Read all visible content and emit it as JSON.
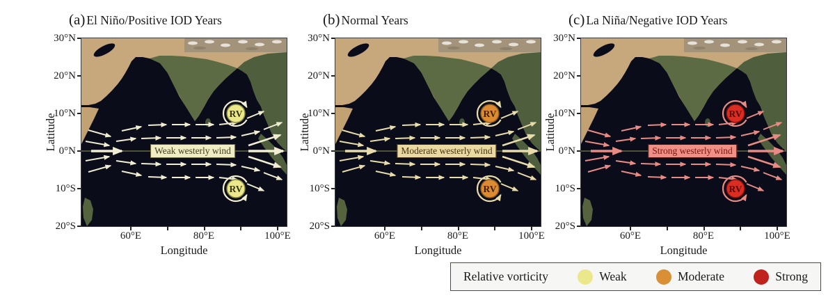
{
  "figure": {
    "panels": [
      {
        "label": "(a)",
        "title": "El Niño/Positive IOD Years",
        "wind_label": "Weak westerly wind",
        "vorticity_label": "RV",
        "intensity": "Weak",
        "colors": {
          "arrow": "#f1edd2",
          "box_bg": "#f1ecc3",
          "box_text": "#3d3d20",
          "box_border": "#6b6b3a",
          "rv_fill": "#ebe88c",
          "rv_ring": "#88883c",
          "rv_text": "#33330f"
        }
      },
      {
        "label": "(b)",
        "title": "Normal Years",
        "wind_label": "Moderate westerly wind",
        "vorticity_label": "RV",
        "intensity": "Moderate",
        "colors": {
          "arrow": "#e9dcab",
          "box_bg": "#ead9a0",
          "box_text": "#47320f",
          "box_border": "#47320f",
          "rv_fill": "#dd8b33",
          "rv_ring": "#8a5a1a",
          "rv_text": "#3a1f05"
        }
      },
      {
        "label": "(c)",
        "title": "La Niña/Negative IOD Years",
        "wind_label": "Strong westerly wind",
        "vorticity_label": "RV",
        "intensity": "Strong",
        "colors": {
          "arrow": "#e88b84",
          "box_bg": "#ef8f85",
          "box_text": "#7c120e",
          "box_border": "#5a0e0a",
          "rv_fill": "#da2d23",
          "rv_ring": "#7c100c",
          "rv_text": "#500a08"
        }
      }
    ],
    "axes": {
      "x_label": "Longitude",
      "y_label": "Latitude",
      "x_ticks": [
        "60°E",
        "80°E",
        "100°E"
      ],
      "y_ticks": [
        "30°N",
        "20°N",
        "10°N",
        "0°N",
        "10°S",
        "20°S"
      ]
    },
    "legend": {
      "title": "Relative vorticity",
      "items": [
        {
          "label": "Weak",
          "color": "#ebe88c"
        },
        {
          "label": "Moderate",
          "color": "#d98f35"
        },
        {
          "label": "Strong",
          "color": "#c0221e"
        }
      ]
    }
  }
}
